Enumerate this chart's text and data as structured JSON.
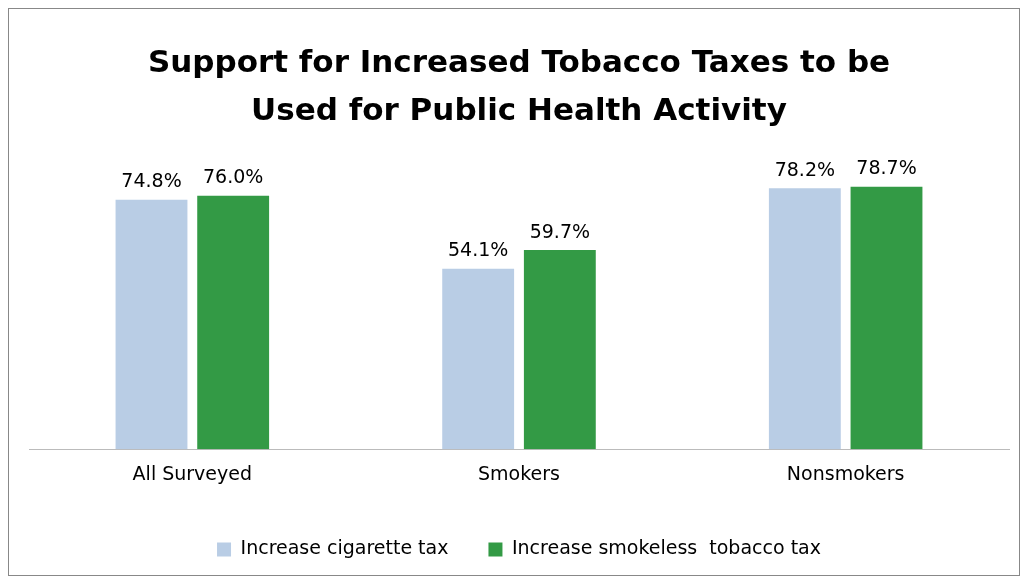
{
  "chart_data": {
    "type": "bar",
    "title": "Support for Increased Tobacco Taxes to be Used for Public Health Activity",
    "categories": [
      "All Surveyed",
      "Smokers",
      "Nonsmokers"
    ],
    "series": [
      {
        "name": "Increase cigarette tax",
        "color": "#b9cde5",
        "values": [
          74.8,
          54.1,
          78.2
        ],
        "value_labels": [
          "74.8%",
          "54.1%",
          "78.2%"
        ]
      },
      {
        "name": "Increase smokeless  tobacco tax",
        "color": "#339a45",
        "values": [
          76.0,
          59.7,
          78.7
        ],
        "value_labels": [
          "76.0%",
          "59.7%",
          "78.7%"
        ]
      }
    ],
    "tick_labels": "x",
    "grid": false,
    "legend": "bottom"
  }
}
